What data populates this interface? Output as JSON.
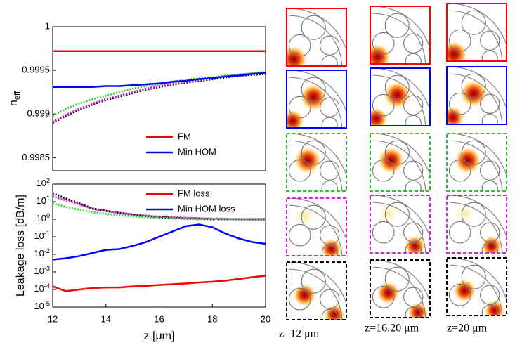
{
  "chart_data": [
    {
      "type": "line",
      "y_label": "n_eff",
      "x": [
        12,
        12.5,
        13,
        13.5,
        14,
        14.5,
        15,
        15.5,
        16,
        16.5,
        17,
        17.5,
        18,
        18.5,
        19,
        19.5,
        20
      ],
      "xlim": [
        12,
        20
      ],
      "ylim": [
        0.99835,
        1
      ],
      "yticks": [
        0.9985,
        0.999,
        0.9995,
        1
      ],
      "legend": "lower right",
      "series": [
        {
          "name": "FM",
          "color": "#ff0000",
          "style": "solid",
          "values": [
            0.99972,
            0.99972,
            0.99972,
            0.99972,
            0.99972,
            0.99972,
            0.99972,
            0.99972,
            0.99972,
            0.99972,
            0.99972,
            0.99972,
            0.99972,
            0.99972,
            0.99972,
            0.99972,
            0.99972
          ]
        },
        {
          "name": "Min HOM",
          "color": "#0000ff",
          "style": "solid",
          "values": [
            0.99931,
            0.99931,
            0.99931,
            0.99931,
            0.99932,
            0.99932,
            0.99933,
            0.99934,
            0.99935,
            0.99937,
            0.99938,
            0.9994,
            0.99941,
            0.99943,
            0.99944,
            0.99946,
            0.99947
          ]
        },
        {
          "color": "#33dd33",
          "style": "dotted",
          "values": [
            0.99898,
            0.99906,
            0.99912,
            0.99917,
            0.99921,
            0.99925,
            0.99929,
            0.99932,
            0.99934,
            0.99937,
            0.99939,
            0.99941,
            0.99942,
            0.99944,
            0.99945,
            0.99947,
            0.99948
          ]
        },
        {
          "color": "#dd22dd",
          "style": "dotted",
          "values": [
            0.99891,
            0.99899,
            0.99906,
            0.99912,
            0.99917,
            0.99921,
            0.99925,
            0.99929,
            0.99932,
            0.99935,
            0.99937,
            0.99939,
            0.99941,
            0.99943,
            0.99945,
            0.99946,
            0.99947
          ]
        },
        {
          "color": "#000000",
          "style": "dotted",
          "values": [
            0.9989,
            0.99898,
            0.99905,
            0.99911,
            0.99916,
            0.9992,
            0.99924,
            0.99928,
            0.99931,
            0.99934,
            0.99936,
            0.99938,
            0.9994,
            0.99942,
            0.99944,
            0.99945,
            0.99946
          ]
        }
      ]
    },
    {
      "type": "line",
      "y_label": "Leakage loss [dB/m]",
      "x_label": "z [μm]",
      "log_y": true,
      "x": [
        12,
        12.5,
        13,
        13.5,
        14,
        14.5,
        15,
        15.5,
        16,
        16.5,
        17,
        17.5,
        18,
        18.5,
        19,
        19.5,
        20
      ],
      "xlim": [
        12,
        20
      ],
      "xticks": [
        12,
        14,
        16,
        18,
        20
      ],
      "ylim": [
        1e-05,
        100
      ],
      "yticks": [
        {
          "value": 1e-05,
          "label": "10^-5"
        },
        {
          "value": 0.0001,
          "label": "10^-4"
        },
        {
          "value": 0.001,
          "label": "10^-3"
        },
        {
          "value": 0.01,
          "label": "10^-2"
        },
        {
          "value": 0.1,
          "label": "10^-1"
        },
        {
          "value": 1,
          "label": "10^0"
        },
        {
          "value": 10,
          "label": "10^1"
        },
        {
          "value": 100,
          "label": "10^2"
        }
      ],
      "legend": "upper right",
      "series": [
        {
          "name": "FM loss",
          "color": "#ff0000",
          "style": "solid",
          "values": [
            0.00015,
            8e-05,
            0.0001,
            0.00012,
            0.00013,
            0.00013,
            0.00015,
            0.00016,
            0.00018,
            0.0002,
            0.00022,
            0.00025,
            0.00028,
            0.00032,
            0.0004,
            0.0005,
            0.0006
          ]
        },
        {
          "name": "Min HOM loss",
          "color": "#0000ff",
          "style": "solid",
          "values": [
            0.005,
            0.006,
            0.008,
            0.012,
            0.018,
            0.02,
            0.03,
            0.05,
            0.1,
            0.2,
            0.4,
            0.5,
            0.35,
            0.15,
            0.08,
            0.05,
            0.04
          ]
        },
        {
          "color": "#33dd33",
          "style": "dotted",
          "values": [
            8,
            5,
            3.5,
            2.5,
            2,
            1.7,
            1.5,
            1.3,
            1.2,
            1.1,
            1.05,
            1,
            1,
            1,
            1,
            0.95,
            0.95
          ]
        },
        {
          "color": "#dd22dd",
          "style": "dotted",
          "values": [
            20,
            12,
            7,
            4,
            3,
            2.3,
            1.9,
            1.6,
            1.4,
            1.3,
            1.2,
            1.1,
            1.1,
            1.05,
            1,
            1,
            1
          ]
        },
        {
          "color": "#000000",
          "style": "dotted",
          "values": [
            30,
            15,
            8,
            4,
            3,
            2.3,
            1.8,
            1.5,
            1.3,
            1.2,
            1.1,
            1.1,
            1,
            1,
            1,
            1,
            1
          ]
        }
      ]
    }
  ],
  "panels": {
    "row_colors": [
      "#ff0000",
      "#0000ff",
      "#33bb33",
      "#dd22dd",
      "#000000"
    ],
    "columns": [
      {
        "caption": "z=12 μm"
      },
      {
        "caption": "z=16.20 μm"
      },
      {
        "caption": "z=20 μm"
      }
    ]
  }
}
